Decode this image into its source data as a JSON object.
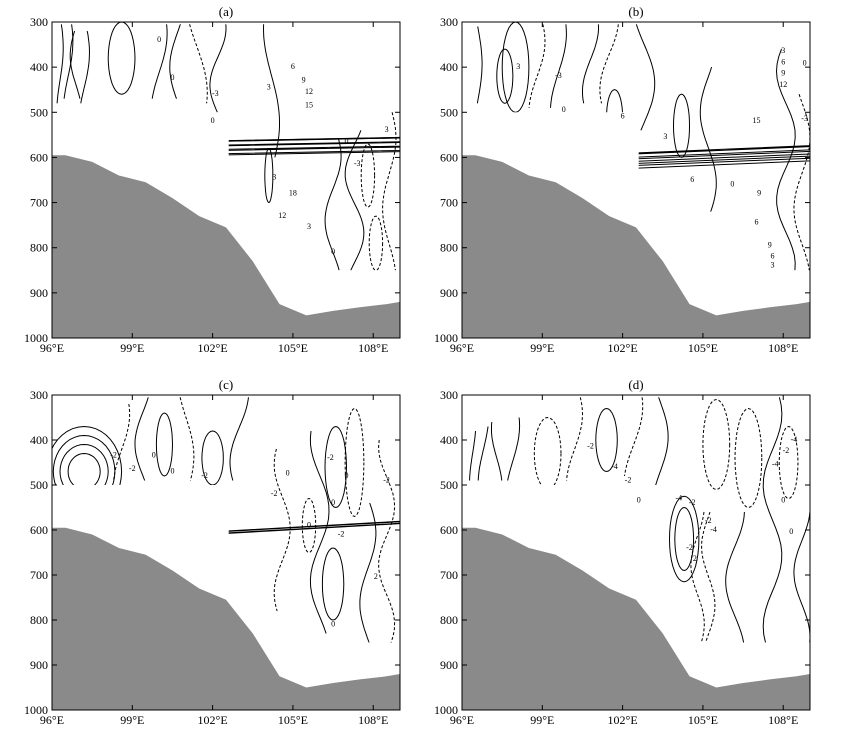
{
  "chart_data": {
    "type": "contour",
    "x_ticks": [
      "96°E",
      "99°E",
      "102°E",
      "105°E",
      "108°E"
    ],
    "x_tick_values": [
      96,
      99,
      102,
      105,
      108
    ],
    "xlim": [
      96,
      109
    ],
    "y_ticks": [
      "300",
      "400",
      "500",
      "600",
      "700",
      "800",
      "900",
      "1000"
    ],
    "y_tick_values": [
      300,
      400,
      500,
      600,
      700,
      800,
      900,
      1000
    ],
    "ylim": [
      300,
      1000
    ],
    "y_inverted": true,
    "terrain_color": "#8a8a8a",
    "terrain_profile": {
      "lon": [
        96,
        96.5,
        97.5,
        98.5,
        99.5,
        100.5,
        101.5,
        102.5,
        103.5,
        104.5,
        105.5,
        106.5,
        107.5,
        108.5,
        109
      ],
      "pres": [
        595,
        595,
        610,
        640,
        655,
        690,
        730,
        755,
        830,
        925,
        950,
        940,
        932,
        925,
        920
      ]
    },
    "panels": [
      {
        "title": "(a)",
        "contour_labels": [
          "0",
          "0",
          "-3",
          "0",
          "3",
          "6",
          "9",
          "12",
          "15",
          "3",
          "0",
          "-3",
          "3",
          "18",
          "12",
          "3",
          "0"
        ]
      },
      {
        "title": "(b)",
        "contour_labels": [
          "3",
          "-3",
          "0",
          "6",
          "3",
          "3",
          "6",
          "9",
          "12",
          "0",
          "-3",
          "15",
          "0",
          "6",
          "9",
          "6",
          "9",
          "6",
          "3"
        ]
      },
      {
        "title": "(c)",
        "contour_labels": [
          "-2",
          "0",
          "-2",
          "0",
          "-2",
          "-2",
          "0",
          "-2",
          "0",
          "-2",
          "0",
          "-2",
          "2",
          "0",
          "0"
        ]
      },
      {
        "title": "(d)",
        "contour_labels": [
          "-2",
          "-4",
          "-2",
          "-2",
          "-4",
          "-2",
          "0",
          "-2",
          "-4",
          "0",
          "2",
          "-4",
          "-2",
          "0",
          "-4"
        ]
      }
    ]
  }
}
